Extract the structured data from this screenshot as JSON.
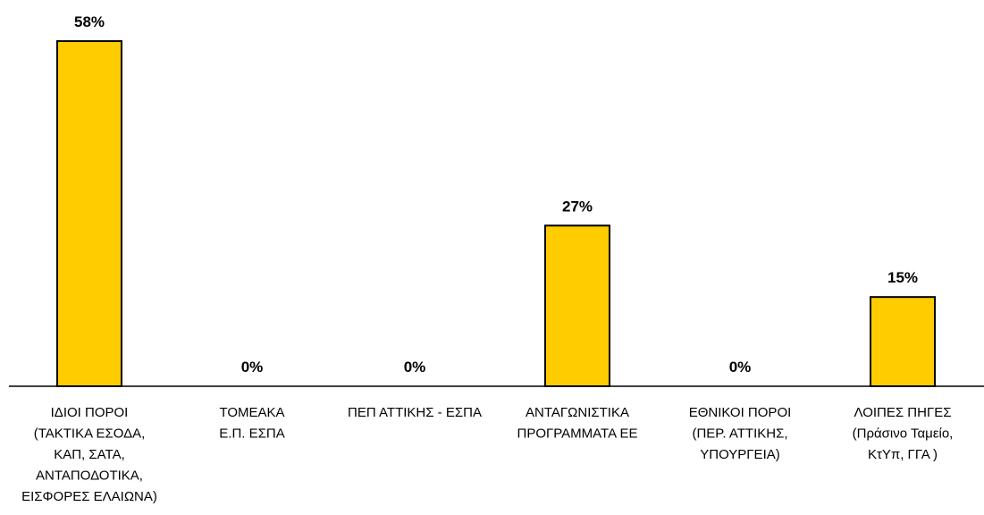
{
  "chart_data": {
    "type": "bar",
    "categories": [
      [
        "ΙΔΙΟΙ ΠΟΡΟΙ",
        "(ΤΑΚΤΙΚΑ ΕΣΟΔΑ,",
        "ΚΑΠ,  ΣΑΤΑ,",
        "ΑΝΤΑΠΟΔΟΤΙΚΑ,",
        "ΕΙΣΦΟΡΕΣ ΕΛΑΙΩΝΑ)"
      ],
      [
        "ΤΟΜΕΑΚΑ",
        "Ε.Π. ΕΣΠΑ"
      ],
      [
        "ΠΕΠ ΑΤΤΙΚΗΣ - ΕΣΠΑ"
      ],
      [
        "ΑΝΤΑΓΩΝΙΣΤΙΚΑ",
        "ΠΡΟΓΡΑΜΜΑΤΑ ΕΕ"
      ],
      [
        "ΕΘΝΙΚΟΙ ΠΟΡΟΙ",
        "(ΠΕΡ. ΑΤΤΙΚΗΣ,",
        "ΥΠΟΥΡΓΕΙΑ)"
      ],
      [
        "ΛΟΙΠΕΣ ΠΗΓΕΣ",
        "(Πράσινο Ταμείο,",
        "ΚτΥπ, ΓΓΑ )"
      ]
    ],
    "values": [
      58,
      0,
      0,
      27,
      0,
      15
    ],
    "value_labels": [
      "58%",
      "0%",
      "0%",
      "27%",
      "0%",
      "15%"
    ],
    "unit": "%",
    "ylim": [
      0,
      58
    ],
    "bar_color": "#FFCC00",
    "bar_outline_color": "#000000",
    "grid": false,
    "legend": "none",
    "title": "",
    "xlabel": "",
    "ylabel": ""
  }
}
